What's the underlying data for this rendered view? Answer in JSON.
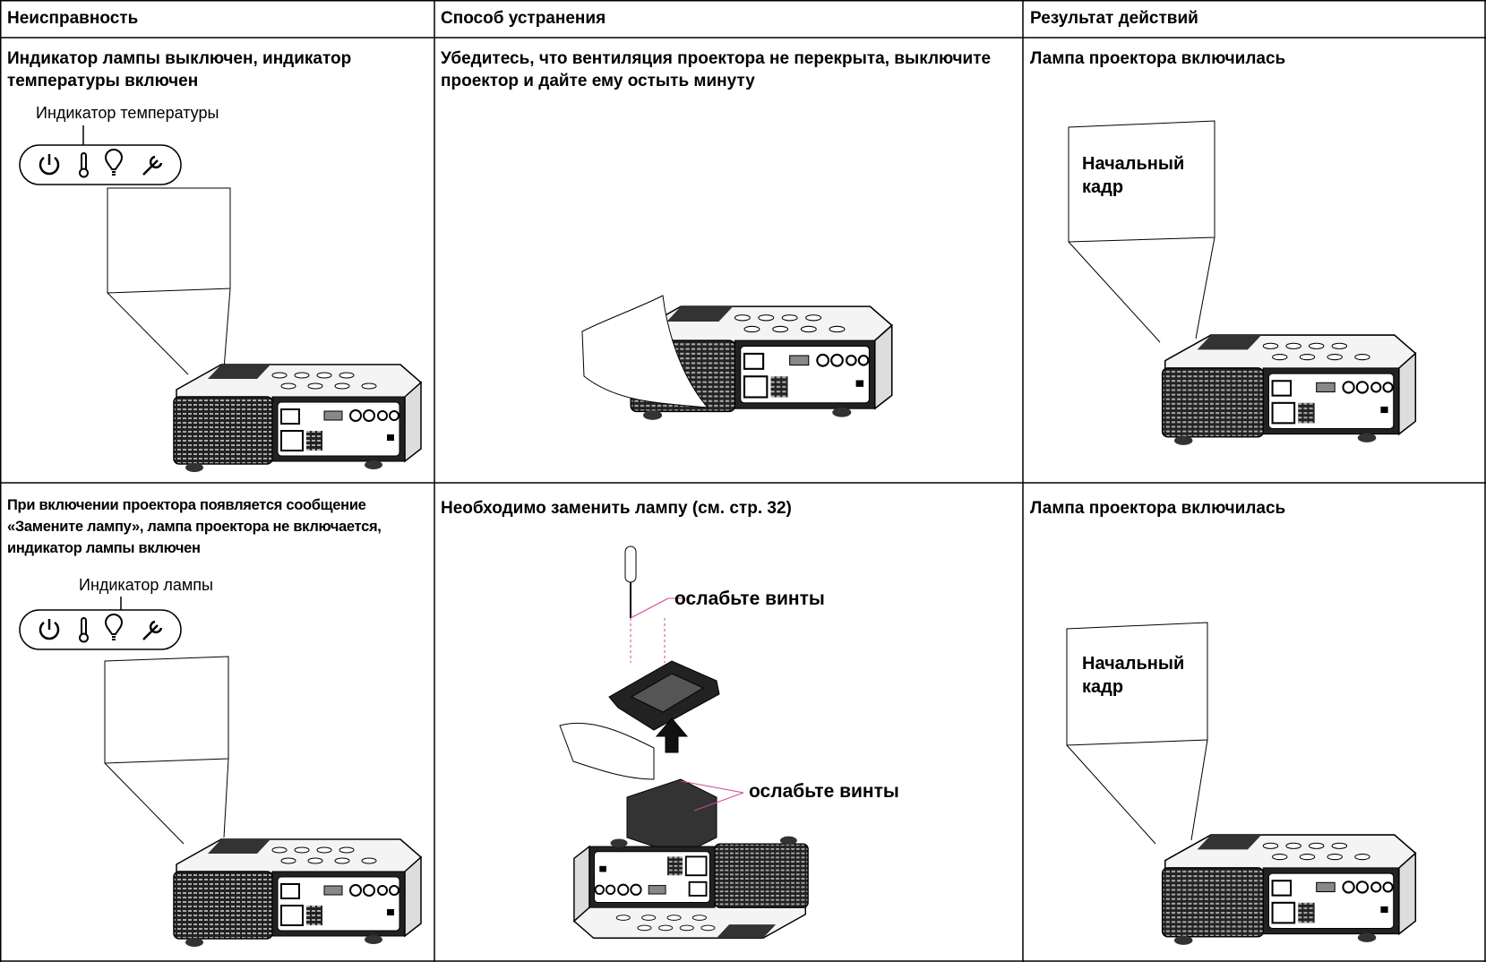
{
  "table": {
    "header": [
      "Неисправность",
      "Способ устранения",
      "Результат действий"
    ],
    "rows": [
      {
        "problem": "Индикатор лампы выключен, индикатор температуры включен",
        "indicator_label": "Индикатор температуры",
        "solution": "Убедитесь, что вентиляция проектора не перекрыта, выключите проектор и дайте ему остыть минуту",
        "result": "Лампа проектора включилась",
        "screen_label": "Начальный кадр"
      },
      {
        "problem": "При включении проектора появляется сообщение «Замените лампу», лампа проектора не включается, индикатор лампы включен",
        "indicator_label": "Индикатор лампы",
        "solution": "Необходимо заменить лампу (см. стр. 32)",
        "callouts": [
          "ослабьте винты",
          "ослабьте винты"
        ],
        "result": "Лампа проектора включилась",
        "screen_label": "Начальный кадр"
      }
    ]
  }
}
